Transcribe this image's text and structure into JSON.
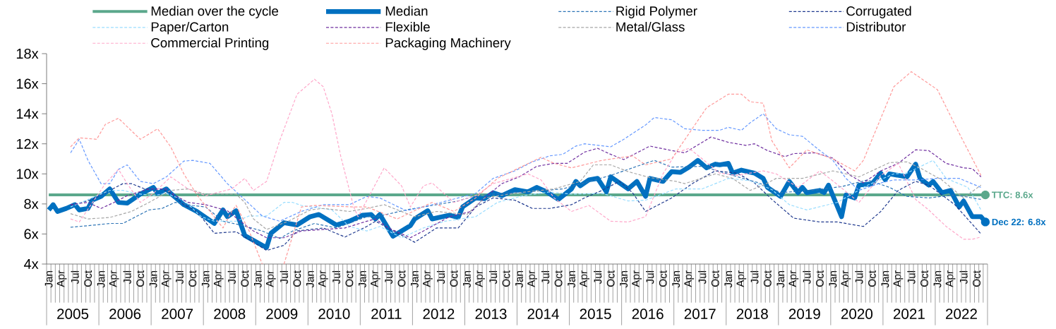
{
  "chart_data": {
    "type": "line",
    "legend": "top",
    "xlim": [
      "2005-01",
      "2022-12"
    ],
    "ylim": [
      4,
      18
    ],
    "yticks": [
      {
        "value": 4,
        "label": "4x"
      },
      {
        "value": 6,
        "label": "6x"
      },
      {
        "value": 8,
        "label": "8x"
      },
      {
        "value": 10,
        "label": "10x"
      },
      {
        "value": 12,
        "label": "12x"
      },
      {
        "value": 14,
        "label": "14x"
      },
      {
        "value": 16,
        "label": "16x"
      },
      {
        "value": 18,
        "label": "18x"
      }
    ],
    "xticks": [
      {
        "value": "2005-01",
        "label": "Jan"
      },
      {
        "value": "2005-04",
        "label": "Apr"
      },
      {
        "value": "2005-07",
        "label": "Jul"
      },
      {
        "value": "2005-10",
        "label": "Oct"
      },
      {
        "value": "2006-01",
        "label": "Jan"
      },
      {
        "value": "2006-04",
        "label": "Apr"
      },
      {
        "value": "2006-07",
        "label": "Jul"
      },
      {
        "value": "2006-10",
        "label": "Oct"
      },
      {
        "value": "2007-01",
        "label": "Jan"
      },
      {
        "value": "2007-04",
        "label": "Apr"
      },
      {
        "value": "2007-07",
        "label": "Jul"
      },
      {
        "value": "2007-10",
        "label": "Oct"
      },
      {
        "value": "2008-01",
        "label": "Jan"
      },
      {
        "value": "2008-04",
        "label": "Apr"
      },
      {
        "value": "2008-07",
        "label": "Jul"
      },
      {
        "value": "2008-10",
        "label": "Oct"
      },
      {
        "value": "2009-01",
        "label": "Jan"
      },
      {
        "value": "2009-04",
        "label": "Apr"
      },
      {
        "value": "2009-07",
        "label": "Jul"
      },
      {
        "value": "2009-10",
        "label": "Oct"
      },
      {
        "value": "2010-01",
        "label": "Jan"
      },
      {
        "value": "2010-04",
        "label": "Apr"
      },
      {
        "value": "2010-07",
        "label": "Jul"
      },
      {
        "value": "2010-10",
        "label": "Oct"
      },
      {
        "value": "2011-01",
        "label": "Jan"
      },
      {
        "value": "2011-04",
        "label": "Apr"
      },
      {
        "value": "2011-07",
        "label": "Jul"
      },
      {
        "value": "2011-10",
        "label": "Oct"
      },
      {
        "value": "2012-01",
        "label": "Jan"
      },
      {
        "value": "2012-04",
        "label": "Apr"
      },
      {
        "value": "2012-07",
        "label": "Jul"
      },
      {
        "value": "2012-10",
        "label": "Oct"
      },
      {
        "value": "2013-01",
        "label": "Jan"
      },
      {
        "value": "2013-04",
        "label": "Apr"
      },
      {
        "value": "2013-07",
        "label": "Jul"
      },
      {
        "value": "2013-10",
        "label": "Oct"
      },
      {
        "value": "2014-01",
        "label": "Jan"
      },
      {
        "value": "2014-04",
        "label": "Apr"
      },
      {
        "value": "2014-07",
        "label": "Jul"
      },
      {
        "value": "2014-10",
        "label": "Oct"
      },
      {
        "value": "2015-01",
        "label": "Jan"
      },
      {
        "value": "2015-04",
        "label": "Apr"
      },
      {
        "value": "2015-07",
        "label": "Jul"
      },
      {
        "value": "2015-10",
        "label": "Oct"
      },
      {
        "value": "2016-01",
        "label": "Jan"
      },
      {
        "value": "2016-04",
        "label": "Apr"
      },
      {
        "value": "2016-07",
        "label": "Jul"
      },
      {
        "value": "2016-10",
        "label": "Oct"
      },
      {
        "value": "2017-01",
        "label": "Jan"
      },
      {
        "value": "2017-04",
        "label": "Apr"
      },
      {
        "value": "2017-07",
        "label": "Jul"
      },
      {
        "value": "2017-10",
        "label": "Oct"
      },
      {
        "value": "2018-01",
        "label": "Jan"
      },
      {
        "value": "2018-04",
        "label": "Apr"
      },
      {
        "value": "2018-07",
        "label": "Jul"
      },
      {
        "value": "2018-10",
        "label": "Oct"
      },
      {
        "value": "2019-01",
        "label": "Jan"
      },
      {
        "value": "2019-04",
        "label": "Apr"
      },
      {
        "value": "2019-07",
        "label": "Jul"
      },
      {
        "value": "2019-10",
        "label": "Oct"
      },
      {
        "value": "2020-01",
        "label": "Jan"
      },
      {
        "value": "2020-04",
        "label": "Apr"
      },
      {
        "value": "2020-07",
        "label": "Jul"
      },
      {
        "value": "2020-10",
        "label": "Oct"
      },
      {
        "value": "2021-01",
        "label": "Jan"
      },
      {
        "value": "2021-04",
        "label": "Apr"
      },
      {
        "value": "2021-07",
        "label": "Jul"
      },
      {
        "value": "2021-10",
        "label": "Oct"
      },
      {
        "value": "2022-01",
        "label": "Jan"
      },
      {
        "value": "2022-04",
        "label": "Apr"
      },
      {
        "value": "2022-07",
        "label": "Jul"
      },
      {
        "value": "2022-10",
        "label": "Oct"
      }
    ],
    "series": [
      {
        "name": "Median over the cycle",
        "color": "#5ba88c",
        "line_style": "solid",
        "x": [
          "2005-01",
          "2022-12"
        ],
        "values": [
          8.6,
          8.6
        ]
      },
      {
        "name": "Median",
        "color": "#0070c0",
        "line_style": "solid",
        "x": [
          "2005-01",
          "2005-02",
          "2005-03",
          "2005-05",
          "2005-07",
          "2005-08",
          "2005-10",
          "2005-11",
          "2006-01",
          "2006-03",
          "2006-05",
          "2006-07",
          "2006-10",
          "2007-01",
          "2007-02",
          "2007-04",
          "2007-05",
          "2007-08",
          "2007-11",
          "2008-03",
          "2008-05",
          "2008-06",
          "2008-08",
          "2008-10",
          "2009-02",
          "2009-03",
          "2009-04",
          "2009-07",
          "2009-10",
          "2010-01",
          "2010-03",
          "2010-07",
          "2010-10",
          "2011-01",
          "2011-03",
          "2011-04",
          "2011-05",
          "2011-08",
          "2011-12",
          "2012-01",
          "2012-04",
          "2012-05",
          "2012-09",
          "2012-11",
          "2012-12",
          "2013-03",
          "2013-05",
          "2013-07",
          "2013-09",
          "2013-12",
          "2014-03",
          "2014-05",
          "2014-07",
          "2014-10",
          "2015-01",
          "2015-02",
          "2015-03",
          "2015-05",
          "2015-07",
          "2015-09",
          "2015-10",
          "2016-02",
          "2016-04",
          "2016-06",
          "2016-07",
          "2016-10",
          "2016-12",
          "2017-02",
          "2017-04",
          "2017-06",
          "2017-08",
          "2017-10",
          "2017-11",
          "2018-01",
          "2018-02",
          "2018-04",
          "2018-07",
          "2018-09",
          "2018-10",
          "2019-01",
          "2019-03",
          "2019-05",
          "2019-06",
          "2019-07",
          "2019-10",
          "2019-11",
          "2019-12",
          "2020-03",
          "2020-04",
          "2020-06",
          "2020-07",
          "2020-10",
          "2020-12",
          "2021-01",
          "2021-02",
          "2021-06",
          "2021-08",
          "2021-09",
          "2021-11",
          "2021-12",
          "2022-02",
          "2022-04",
          "2022-06",
          "2022-07",
          "2022-09",
          "2022-11",
          "2022-12"
        ],
        "values": [
          7.6,
          7.95,
          7.5,
          7.7,
          7.95,
          7.6,
          7.7,
          8.25,
          8.5,
          9.0,
          8.1,
          8.05,
          8.65,
          9.1,
          8.7,
          9.0,
          8.7,
          7.95,
          7.5,
          6.7,
          7.6,
          7.15,
          7.55,
          5.9,
          5.25,
          5.1,
          6.05,
          6.75,
          6.6,
          7.15,
          7.3,
          6.6,
          6.85,
          7.25,
          7.3,
          7.0,
          7.3,
          5.85,
          6.55,
          7.0,
          7.55,
          7.0,
          7.25,
          7.1,
          7.8,
          8.4,
          8.35,
          8.75,
          8.55,
          8.95,
          8.8,
          9.1,
          8.85,
          8.3,
          9.0,
          9.5,
          9.2,
          9.6,
          9.7,
          8.8,
          9.8,
          9.0,
          9.5,
          8.5,
          9.7,
          9.5,
          10.15,
          10.1,
          10.45,
          10.9,
          10.4,
          10.65,
          10.6,
          10.7,
          10.05,
          10.25,
          10.05,
          9.7,
          9.1,
          8.5,
          9.5,
          8.75,
          9.1,
          8.75,
          8.9,
          8.75,
          9.25,
          7.15,
          8.6,
          8.4,
          9.25,
          9.35,
          10.05,
          9.6,
          10.0,
          9.8,
          10.65,
          9.7,
          9.25,
          9.5,
          8.75,
          8.9,
          7.8,
          8.2,
          7.15,
          7.15,
          6.8
        ]
      },
      {
        "name": "Rigid Polymer",
        "color": "#2e75b6",
        "line_style": "dashed",
        "x": [
          "2005-06",
          "2005-10",
          "2006-03",
          "2006-06",
          "2006-09",
          "2006-12",
          "2007-03",
          "2007-06",
          "2007-10",
          "2008-01",
          "2008-05",
          "2008-09",
          "2009-02",
          "2009-06",
          "2009-09",
          "2010-02",
          "2010-07",
          "2011-02",
          "2011-05",
          "2011-11",
          "2012-05",
          "2012-11",
          "2013-03",
          "2013-09",
          "2014-03",
          "2014-11",
          "2015-10",
          "2016-08",
          "2016-12",
          "2017-07",
          "2018-02",
          "2018-08",
          "2019-01",
          "2019-08",
          "2020-03",
          "2020-09",
          "2021-02",
          "2021-06",
          "2021-11",
          "2022-05",
          "2022-11"
        ],
        "values": [
          6.45,
          6.55,
          6.7,
          6.7,
          7.15,
          7.6,
          7.7,
          8.1,
          7.9,
          7.8,
          6.85,
          6.6,
          6.2,
          5.7,
          6.2,
          6.7,
          6.4,
          7.15,
          7.2,
          7.6,
          7.9,
          8.2,
          8.55,
          8.7,
          8.8,
          9.0,
          9.9,
          10.9,
          10.45,
          10.5,
          9.9,
          9.4,
          8.75,
          8.9,
          9.15,
          9.6,
          9.1,
          8.5,
          8.4,
          8.6,
          8.3
        ]
      },
      {
        "name": "Corrugated",
        "color": "#203a8f",
        "line_style": "dashed",
        "x": [
          "2005-06",
          "2005-11",
          "2006-03",
          "2006-06",
          "2006-08",
          "2006-11",
          "2007-03",
          "2007-05",
          "2007-08",
          "2007-11",
          "2008-03",
          "2008-08",
          "2008-12",
          "2009-03",
          "2009-07",
          "2009-10",
          "2010-04",
          "2010-09",
          "2011-02",
          "2011-04",
          "2012-01",
          "2012-06",
          "2012-11",
          "2013-03",
          "2013-07",
          "2013-12",
          "2014-04",
          "2014-08",
          "2015-01",
          "2015-04",
          "2015-08",
          "2015-12",
          "2016-03",
          "2016-06",
          "2016-09",
          "2016-12",
          "2017-05",
          "2017-10",
          "2018-03",
          "2018-07",
          "2018-11",
          "2019-04",
          "2019-10",
          "2020-02",
          "2020-08",
          "2020-12",
          "2021-04",
          "2021-08",
          "2021-11",
          "2022-05",
          "2022-09",
          "2022-11"
        ],
        "values": [
          7.9,
          8.3,
          8.9,
          9.35,
          9.35,
          9.0,
          9.0,
          8.7,
          7.95,
          7.5,
          6.05,
          6.15,
          5.45,
          4.9,
          5.25,
          6.2,
          6.4,
          5.8,
          6.5,
          6.85,
          5.45,
          6.4,
          6.4,
          7.8,
          8.4,
          8.25,
          7.7,
          7.7,
          7.95,
          8.4,
          8.9,
          9.5,
          8.75,
          7.5,
          7.95,
          8.4,
          9.4,
          10.2,
          10.05,
          9.4,
          8.3,
          7.05,
          6.8,
          6.8,
          6.5,
          7.5,
          8.9,
          9.5,
          9.25,
          7.95,
          6.65,
          6.0
        ]
      },
      {
        "name": "Paper/Carton",
        "color": "#99ddff",
        "line_style": "dashed",
        "x": [
          "2005-06",
          "2006-03",
          "2006-06",
          "2006-09",
          "2007-01",
          "2007-04",
          "2007-08",
          "2007-12",
          "2008-03",
          "2008-08",
          "2008-11",
          "2009-03",
          "2009-07",
          "2009-09",
          "2009-11",
          "2010-06",
          "2010-10",
          "2011-02",
          "2011-05",
          "2011-10",
          "2012-03",
          "2012-08",
          "2013-03",
          "2013-08",
          "2014-02",
          "2014-08",
          "2015-01",
          "2015-08",
          "2016-02",
          "2016-06",
          "2017-01",
          "2017-07",
          "2018-01",
          "2018-06",
          "2018-11",
          "2019-03",
          "2019-07",
          "2020-02",
          "2020-09",
          "2021-03",
          "2021-06",
          "2021-12",
          "2022-03",
          "2022-08",
          "2022-11"
        ],
        "values": [
          7.8,
          8.9,
          8.9,
          8.7,
          8.55,
          8.7,
          8.25,
          7.15,
          6.85,
          6.85,
          7.2,
          7.2,
          8.1,
          8.1,
          7.9,
          7.6,
          6.5,
          6.2,
          6.5,
          5.75,
          6.4,
          6.85,
          7.15,
          8.1,
          8.55,
          8.8,
          8.65,
          8.7,
          8.2,
          8.25,
          9.0,
          9.0,
          9.7,
          9.55,
          8.95,
          7.95,
          7.6,
          8.1,
          9.25,
          10.0,
          10.05,
          10.9,
          9.7,
          9.1,
          7.6
        ]
      },
      {
        "name": "Flexible",
        "color": "#7030a0",
        "line_style": "dashed",
        "x": [
          "2005-06",
          "2005-10",
          "2006-01",
          "2006-04",
          "2006-07",
          "2006-12",
          "2007-04",
          "2007-06",
          "2007-09",
          "2008-01",
          "2008-06",
          "2008-09",
          "2008-12",
          "2009-03",
          "2009-07",
          "2009-11",
          "2010-04",
          "2010-09",
          "2011-02",
          "2011-04",
          "2011-07",
          "2011-12",
          "2012-03",
          "2012-09",
          "2013-02",
          "2013-05",
          "2013-09",
          "2014-01",
          "2014-05",
          "2014-09",
          "2014-12",
          "2015-04",
          "2015-07",
          "2015-10",
          "2016-01",
          "2016-07",
          "2016-12",
          "2017-03",
          "2017-09",
          "2018-01",
          "2018-05",
          "2018-07",
          "2018-10",
          "2019-02",
          "2019-04",
          "2019-09",
          "2020-01",
          "2020-05",
          "2020-08",
          "2020-12",
          "2021-04",
          "2021-08",
          "2021-11",
          "2022-03",
          "2022-07",
          "2022-09",
          "2022-11"
        ],
        "values": [
          7.95,
          8.1,
          7.7,
          8.1,
          8.55,
          9.0,
          9.0,
          8.55,
          8.1,
          7.95,
          7.55,
          6.85,
          6.2,
          5.75,
          5.75,
          6.2,
          6.3,
          6.4,
          6.85,
          7.0,
          6.4,
          5.75,
          6.2,
          7.15,
          7.5,
          8.4,
          9.35,
          9.8,
          10.5,
          10.7,
          10.7,
          11.45,
          11.7,
          11.3,
          10.95,
          11.85,
          11.55,
          11.4,
          12.45,
          12.1,
          11.9,
          12.0,
          11.55,
          11.15,
          11.35,
          11.4,
          11.05,
          9.9,
          9.4,
          10.2,
          10.7,
          11.6,
          11.55,
          10.7,
          10.4,
          10.35,
          9.8
        ]
      },
      {
        "name": "Metal/Glass",
        "color": "#a6a6a6",
        "line_style": "dashed",
        "x": [
          "2005-06",
          "2005-10",
          "2006-03",
          "2006-08",
          "2006-12",
          "2007-05",
          "2007-09",
          "2008-01",
          "2008-08",
          "2008-10",
          "2008-12",
          "2009-03",
          "2009-08",
          "2010-01",
          "2010-04",
          "2010-10",
          "2011-02",
          "2011-06",
          "2012-01",
          "2012-06",
          "2013-01",
          "2013-05",
          "2014-01",
          "2014-09",
          "2015-03",
          "2015-06",
          "2015-10",
          "2016-02",
          "2016-07",
          "2017-01",
          "2017-03",
          "2017-10",
          "2018-02",
          "2018-06",
          "2018-09",
          "2018-12",
          "2019-06",
          "2020-01",
          "2020-07",
          "2021-02",
          "2021-06",
          "2021-09",
          "2022-02",
          "2022-07",
          "2022-11"
        ],
        "values": [
          7.35,
          7.0,
          7.1,
          7.5,
          8.1,
          8.9,
          9.0,
          8.65,
          8.65,
          8.1,
          7.0,
          6.3,
          6.85,
          7.6,
          7.7,
          7.5,
          7.7,
          7.95,
          7.15,
          7.5,
          7.3,
          8.4,
          8.75,
          9.0,
          9.5,
          10.6,
          10.6,
          10.15,
          9.75,
          9.5,
          9.35,
          10.0,
          9.7,
          8.9,
          9.25,
          9.7,
          9.7,
          10.2,
          9.8,
          10.75,
          10.8,
          10.4,
          9.6,
          8.4,
          9.25
        ]
      },
      {
        "name": "Distributor",
        "color": "#6699ff",
        "line_style": "dashed",
        "x": [
          "2005-06",
          "2005-08",
          "2005-10",
          "2006-01",
          "2006-03",
          "2006-05",
          "2006-07",
          "2006-10",
          "2007-01",
          "2007-04",
          "2007-08",
          "2007-10",
          "2008-02",
          "2008-06",
          "2008-09",
          "2009-02",
          "2009-06",
          "2009-11",
          "2010-04",
          "2010-10",
          "2011-02",
          "2011-05",
          "2011-11",
          "2012-03",
          "2012-09",
          "2013-03",
          "2013-07",
          "2013-12",
          "2014-04",
          "2014-08",
          "2014-11",
          "2015-02",
          "2015-04",
          "2015-10",
          "2016-01",
          "2016-06",
          "2016-08",
          "2016-12",
          "2017-03",
          "2017-07",
          "2017-11",
          "2018-01",
          "2018-04",
          "2018-06",
          "2018-09",
          "2018-12",
          "2019-03",
          "2019-06",
          "2019-10",
          "2020-01",
          "2020-04",
          "2020-07",
          "2020-12",
          "2021-03",
          "2021-08",
          "2022-01",
          "2022-06",
          "2022-11"
        ],
        "values": [
          11.4,
          12.3,
          10.9,
          9.35,
          9.35,
          10.3,
          10.6,
          9.5,
          9.35,
          9.8,
          10.85,
          10.9,
          10.7,
          9.35,
          8.55,
          7.2,
          6.85,
          7.5,
          7.95,
          7.95,
          8.5,
          8.4,
          7.55,
          7.8,
          8.25,
          8.7,
          9.7,
          10.2,
          10.8,
          11.2,
          11.3,
          11.85,
          12.0,
          11.8,
          12.3,
          13.25,
          13.75,
          13.6,
          13.0,
          12.9,
          12.9,
          13.1,
          12.9,
          13.4,
          14.0,
          13.0,
          12.6,
          12.5,
          11.55,
          10.9,
          9.7,
          8.9,
          9.4,
          9.6,
          9.6,
          9.7,
          9.7,
          9.1
        ]
      },
      {
        "name": "Commercial Printing",
        "color": "#ffa6c9",
        "line_style": "dashed",
        "x": [
          "2005-06",
          "2005-08",
          "2006-02",
          "2006-05",
          "2006-07",
          "2006-10",
          "2007-01",
          "2007-05",
          "2007-09",
          "2008-01",
          "2008-07",
          "2008-10",
          "2008-12",
          "2009-03",
          "2009-06",
          "2009-10",
          "2010-02",
          "2010-04",
          "2010-06",
          "2010-08",
          "2010-11",
          "2010-12",
          "2011-06",
          "2011-10",
          "2011-12",
          "2012-03",
          "2012-05",
          "2012-10",
          "2013-03",
          "2013-07",
          "2014-03",
          "2014-06",
          "2014-09",
          "2015-01",
          "2015-05",
          "2015-10",
          "2016-02",
          "2016-06",
          "2016-10",
          "2017-01",
          "2017-04",
          "2017-07",
          "2017-11",
          "2018-03",
          "2018-09",
          "2018-12",
          "2019-05",
          "2019-10",
          "2020-02",
          "2020-07",
          "2020-12",
          "2021-04",
          "2021-08",
          "2021-11",
          "2022-03",
          "2022-07",
          "2022-09",
          "2022-11"
        ],
        "values": [
          7.0,
          6.8,
          9.35,
          10.3,
          9.35,
          8.1,
          8.7,
          9.8,
          9.0,
          8.55,
          9.0,
          9.7,
          8.9,
          9.5,
          12.2,
          15.3,
          16.3,
          15.8,
          14.0,
          11.2,
          7.8,
          7.15,
          10.4,
          9.2,
          7.8,
          9.2,
          9.4,
          8.1,
          8.55,
          9.35,
          10.0,
          9.6,
          8.4,
          7.5,
          7.9,
          6.85,
          6.8,
          7.15,
          10.0,
          11.4,
          11.7,
          11.0,
          10.05,
          9.9,
          10.2,
          10.0,
          9.1,
          10.2,
          9.3,
          8.1,
          9.9,
          10.7,
          8.3,
          7.6,
          6.5,
          5.65,
          5.65,
          5.8
        ]
      },
      {
        "name": "Packaging Machinery",
        "color": "#ff9999",
        "line_style": "dashed",
        "x": [
          "2005-06",
          "2005-08",
          "2005-12",
          "2006-02",
          "2006-05",
          "2006-10",
          "2007-02",
          "2007-05",
          "2007-08",
          "2007-11",
          "2008-02",
          "2008-05",
          "2008-07",
          "2008-08",
          "2008-11",
          "2009-02",
          "2009-04",
          "2009-07",
          "2009-11",
          "2010-02",
          "2010-11",
          "2011-02",
          "2011-09",
          "2012-05",
          "2012-10",
          "2013-03",
          "2013-08",
          "2014-06",
          "2014-09",
          "2015-01",
          "2015-08",
          "2016-03",
          "2016-06",
          "2016-12",
          "2017-08",
          "2018-01",
          "2018-04",
          "2018-06",
          "2018-09",
          "2018-11",
          "2019-03",
          "2019-07",
          "2020-01",
          "2020-06",
          "2020-08",
          "2021-03",
          "2021-07",
          "2022-01",
          "2022-06",
          "2022-11"
        ],
        "values": [
          11.8,
          12.4,
          12.3,
          13.3,
          13.7,
          12.3,
          13.0,
          11.8,
          10.0,
          8.6,
          7.5,
          6.4,
          7.5,
          7.9,
          6.2,
          4.0,
          null,
          4.0,
          7.8,
          7.9,
          7.8,
          7.8,
          7.0,
          8.1,
          7.5,
          8.4,
          9.7,
          11.1,
          10.7,
          10.4,
          10.9,
          11.2,
          10.6,
          11.0,
          14.4,
          15.3,
          15.3,
          14.8,
          14.7,
          12.2,
          10.4,
          11.6,
          11.0,
          10.2,
          10.9,
          15.8,
          16.8,
          15.6,
          12.7,
          9.9
        ]
      }
    ],
    "annotations": [
      {
        "text": "TTC: 8.6x",
        "x": "2022-12",
        "y": 8.6
      },
      {
        "text": "Dec 22: 6.8x",
        "x": "2022-12",
        "y": 6.8
      },
      "2005",
      "2006",
      "2007",
      "2008",
      "2009",
      "2010",
      "2011",
      "2012",
      "2013",
      "2014",
      "2015",
      "2016",
      "2017",
      "2018",
      "2019",
      "2020",
      "2021",
      "2022"
    ]
  }
}
